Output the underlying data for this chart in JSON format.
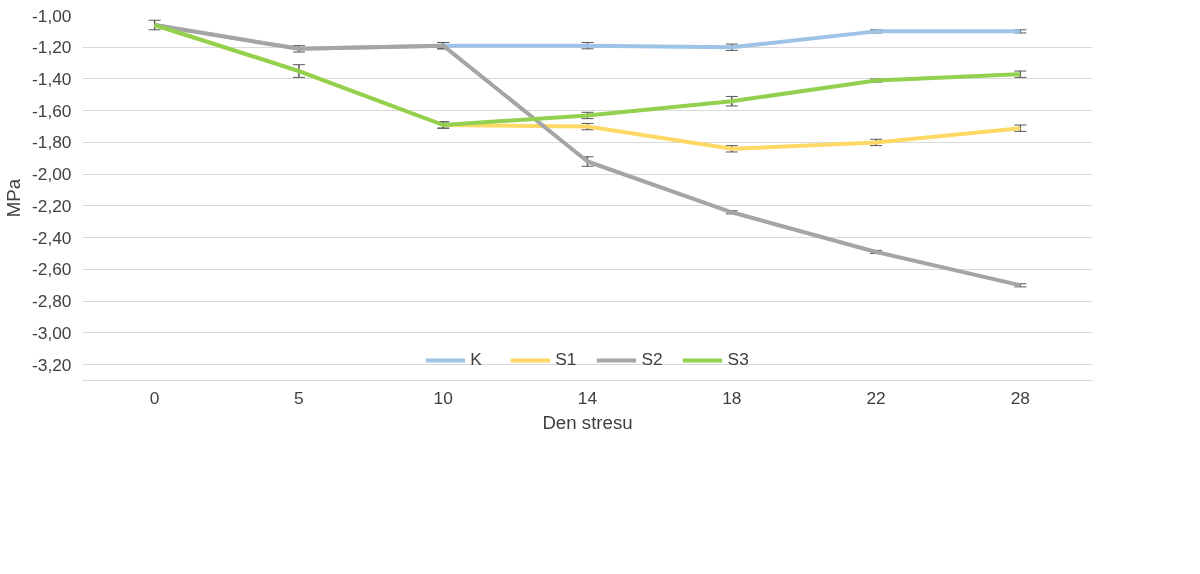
{
  "chart_data": {
    "type": "line",
    "xlabel": "Den stresu",
    "ylabel": "MPa",
    "categories": [
      "0",
      "5",
      "10",
      "14",
      "18",
      "22",
      "28"
    ],
    "series": [
      {
        "name": "K",
        "color": "#9dc3e6",
        "values": [
          -1.06,
          -1.21,
          -1.19,
          -1.19,
          -1.2,
          -1.1,
          -1.1
        ],
        "errors": [
          0.03,
          null,
          0.02,
          0.02,
          0.02,
          0.01,
          0.01
        ]
      },
      {
        "name": "S1",
        "color": "#ffd966",
        "values": [
          -1.06,
          -1.35,
          -1.69,
          -1.7,
          -1.84,
          -1.8,
          -1.71
        ],
        "errors": [
          null,
          null,
          0.02,
          0.02,
          0.02,
          0.02,
          0.02
        ]
      },
      {
        "name": "S2",
        "color": "#a5a5a5",
        "values": [
          -1.06,
          -1.21,
          -1.19,
          -1.92,
          -2.24,
          -2.49,
          -2.7
        ],
        "errors": [
          null,
          0.02,
          0.02,
          0.03,
          0.01,
          0.01,
          0.01
        ]
      },
      {
        "name": "S3",
        "color": "#92d050",
        "values": [
          -1.06,
          -1.35,
          -1.69,
          -1.63,
          -1.54,
          -1.41,
          -1.37
        ],
        "errors": [
          null,
          0.04,
          0.02,
          0.02,
          0.03,
          0.01,
          0.02
        ]
      }
    ],
    "ylim": [
      -3.3,
      -1.0
    ],
    "yticks": [
      {
        "value": -1.0,
        "label": "-1,00"
      },
      {
        "value": -1.2,
        "label": "-1,20"
      },
      {
        "value": -1.4,
        "label": "-1,40"
      },
      {
        "value": -1.6,
        "label": "-1,60"
      },
      {
        "value": -1.8,
        "label": "-1,80"
      },
      {
        "value": -2.0,
        "label": "-2,00"
      },
      {
        "value": -2.2,
        "label": "-2,20"
      },
      {
        "value": -2.4,
        "label": "-2,40"
      },
      {
        "value": -2.6,
        "label": "-2,60"
      },
      {
        "value": -2.8,
        "label": "-2,80"
      },
      {
        "value": -3.0,
        "label": "-3,00"
      },
      {
        "value": -3.2,
        "label": "-3,20"
      }
    ],
    "grid": "y",
    "legend": "bottom",
    "marker": "none",
    "line_style": "solid"
  }
}
